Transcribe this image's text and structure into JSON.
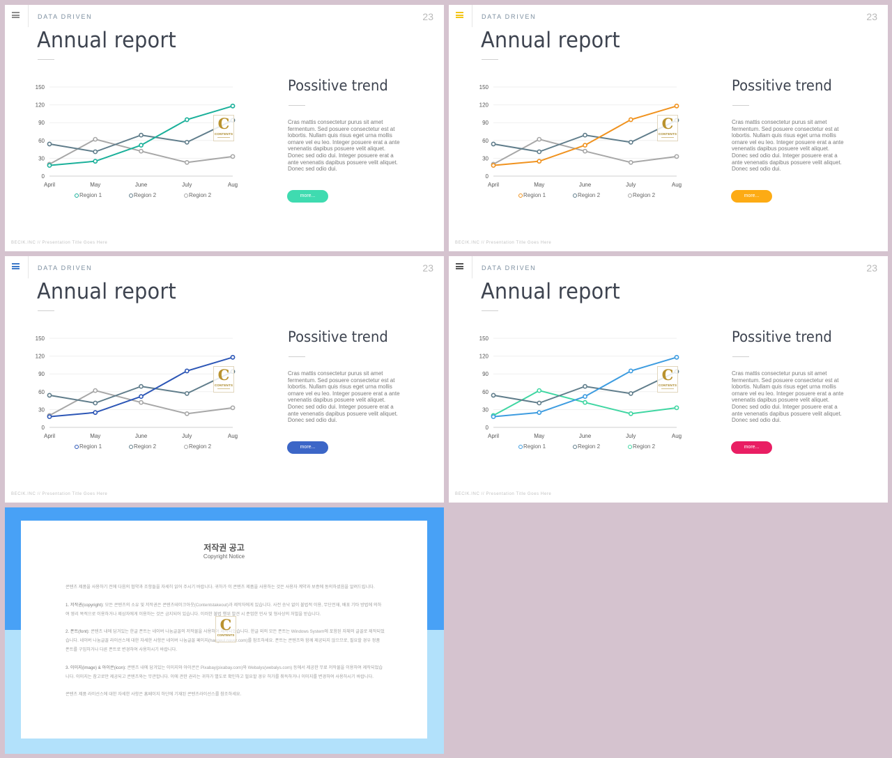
{
  "colors": {
    "background": "#d5c3cf",
    "line_gray": "#a7a7a7",
    "line_slate": "#607d8b",
    "copyright_band_top": "#48a1f6",
    "copyright_band_bottom": "#b2e1fb"
  },
  "slides": [
    {
      "section_label": "DATA DRIVEN",
      "page_number": "23",
      "title": "Annual report",
      "side_heading": "Possitive trend",
      "side_body": "Cras mattis consectetur purus sit amet fermentum. Sed posuere consectetur est at lobortis. Nullam quis risus eget urna mollis ornare vel eu leo. Integer posuere erat a ante venenatis dapibus posuere velit aliquet. Donec sed odio dui. Integer posuere erat a ante venenatis dapibus posuere velit aliquet. Donec sed odio dui.",
      "button_label": "more...",
      "footer": "BECIK.INC  //  Presentation  Title  Goes  Here",
      "menu_icon": "hamburger-icon",
      "accent_color": "#1ab09a",
      "button_color": "#3fdbb0",
      "menu_color": "#8c8c8c",
      "legend": [
        "Region 1",
        "Region 2",
        "Region 2"
      ]
    },
    {
      "section_label": "DATA DRIVEN",
      "page_number": "23",
      "title": "Annual report",
      "side_heading": "Possitive trend",
      "side_body": "Cras mattis consectetur purus sit amet fermentum. Sed posuere consectetur est at lobortis. Nullam quis risus eget urna mollis ornare vel eu leo. Integer posuere erat a ante venenatis dapibus posuere velit aliquet. Donec sed odio dui. Integer posuere erat a ante venenatis dapibus posuere velit aliquet. Donec sed odio dui.",
      "button_label": "more...",
      "footer": "BECIK.INC  //  Presentation  Title  Goes  Here",
      "menu_icon": "hamburger-icon",
      "accent_color": "#f0921e",
      "button_color": "#fdab14",
      "menu_color": "#f3c516",
      "legend": [
        "Region 1",
        "Region 2",
        "Region 2"
      ]
    },
    {
      "section_label": "DATA DRIVEN",
      "page_number": "23",
      "title": "Annual report",
      "side_heading": "Possitive trend",
      "side_body": "Cras mattis consectetur purus sit amet fermentum. Sed posuere consectetur est at lobortis. Nullam quis risus eget urna mollis ornare vel eu leo. Integer posuere erat a ante venenatis dapibus posuere velit aliquet. Donec sed odio dui. Integer posuere erat a ante venenatis dapibus posuere velit aliquet. Donec sed odio dui.",
      "button_label": "more...",
      "footer": "BECIK.INC  //  Presentation  Title  Goes  Here",
      "menu_icon": "hamburger-icon",
      "accent_color": "#2c56b6",
      "button_color": "#3c66c7",
      "menu_color": "#3c78c8",
      "legend": [
        "Region 1",
        "Region 2",
        "Region 2"
      ]
    },
    {
      "section_label": "DATA DRIVEN",
      "page_number": "23",
      "title": "Annual report",
      "side_heading": "Possitive trend",
      "side_body": "Cras mattis consectetur purus sit amet fermentum. Sed posuere consectetur est at lobortis. Nullam quis risus eget urna mollis ornare vel eu leo. Integer posuere erat a ante venenatis dapibus posuere velit aliquet. Donec sed odio dui. Integer posuere erat a ante venenatis dapibus posuere velit aliquet. Donec sed odio dui.",
      "button_label": "more...",
      "footer": "BECIK.INC  //  Presentation  Title  Goes  Here",
      "menu_icon": "hamburger-icon",
      "accent_color": "#3d9ce0",
      "button_color": "#e91e63",
      "menu_color": "#555555",
      "legend": [
        "Region 1",
        "Region 2",
        "Region 2"
      ]
    }
  ],
  "chart_data": [
    {
      "type": "line",
      "categories": [
        "April",
        "May",
        "June",
        "July",
        "Aug"
      ],
      "ylim": [
        0,
        150
      ],
      "yticks": [
        0,
        30,
        60,
        90,
        120,
        150
      ],
      "grid": "horizontal",
      "legend_placement": "bottom",
      "series": [
        {
          "name": "Region 1",
          "values": [
            18,
            25,
            52,
            95,
            118
          ],
          "color": "#1ab09a"
        },
        {
          "name": "Region 2",
          "values": [
            54,
            41,
            69,
            57,
            94
          ],
          "color": "#607d8b"
        },
        {
          "name": "Region 2",
          "values": [
            20,
            62,
            42,
            23,
            33
          ],
          "color": "#a7a7a7"
        }
      ]
    },
    {
      "type": "line",
      "categories": [
        "April",
        "May",
        "June",
        "July",
        "Aug"
      ],
      "ylim": [
        0,
        150
      ],
      "yticks": [
        0,
        30,
        60,
        90,
        120,
        150
      ],
      "grid": "horizontal",
      "legend_placement": "bottom",
      "series": [
        {
          "name": "Region 1",
          "values": [
            18,
            25,
            52,
            95,
            118
          ],
          "color": "#f0921e"
        },
        {
          "name": "Region 2",
          "values": [
            54,
            41,
            69,
            57,
            94
          ],
          "color": "#607d8b"
        },
        {
          "name": "Region 2",
          "values": [
            20,
            62,
            42,
            23,
            33
          ],
          "color": "#a7a7a7"
        }
      ]
    },
    {
      "type": "line",
      "categories": [
        "April",
        "May",
        "June",
        "July",
        "Aug"
      ],
      "ylim": [
        0,
        150
      ],
      "yticks": [
        0,
        30,
        60,
        90,
        120,
        150
      ],
      "grid": "horizontal",
      "legend_placement": "bottom",
      "series": [
        {
          "name": "Region 1",
          "values": [
            18,
            25,
            52,
            95,
            118
          ],
          "color": "#2c56b6"
        },
        {
          "name": "Region 2",
          "values": [
            54,
            41,
            69,
            57,
            94
          ],
          "color": "#607d8b"
        },
        {
          "name": "Region 2",
          "values": [
            20,
            62,
            42,
            23,
            33
          ],
          "color": "#a7a7a7"
        }
      ]
    },
    {
      "type": "line",
      "categories": [
        "April",
        "May",
        "June",
        "July",
        "Aug"
      ],
      "ylim": [
        0,
        150
      ],
      "yticks": [
        0,
        30,
        60,
        90,
        120,
        150
      ],
      "grid": "horizontal",
      "legend_placement": "bottom",
      "series": [
        {
          "name": "Region 1",
          "values": [
            18,
            25,
            52,
            95,
            118
          ],
          "color": "#3d9ce0"
        },
        {
          "name": "Region 2",
          "values": [
            54,
            41,
            69,
            57,
            94
          ],
          "color": "#607d8b"
        },
        {
          "name": "Region 2",
          "values": [
            20,
            62,
            42,
            23,
            33
          ],
          "color": "#3fd6a2"
        }
      ]
    }
  ],
  "logo": {
    "letter": "C",
    "text": "CONTENTS"
  },
  "copyright": {
    "title": "저작권 공고",
    "subtitle": "Copyright Notice",
    "intro": "콘텐츠 제품을 사용하기 전에 다음의 협약과 조항들을 자세히 읽어 주시기 바랍니다. 귀하가 이 콘텐츠 제품을 사용하는 것은 사용자 계약과 보증에 동의하셨음을 알려드립니다.",
    "p1_label": "1. 저작권(copyright):",
    "p1": " 모든 콘텐츠의 소유 및 저작권은 콘텐츠테이크아웃(Contentstakeout)과 제작자에게 있습니다. 사전 승낙 없이 불법적 이용, 무단전재, 배포 기타 방법에 의하여 영리 목적으로 이용하거나 제삼자에게 이용하는 것은 금지되어 있습니다. 이러한 불법 행위 발견 시 준엄한 민사 및 형사상의 처벌을 받습니다.",
    "p2_label": "2. 폰트(font):",
    "p2": " 콘텐츠 내에 담겨있는 한글 폰트는 네이버 나눔글꼴의 저작물을 사용하여 제작되었습니다. 한글 외의 모든 폰트는 Windows System에 포함된 자체의 글꼴로 제작되었습니다. 네이버 나눔글꼴 라이선스에 대한 자세한 사항은 네이버 나눔글꼴 페이지(hangeul.naver.com)를 참조하세요. 폰트는 콘텐츠와 함께 제공되지 않으므로, 필요할 경우 정품 폰트를 구입하거나 다른 폰트로 변경하여 사용하시기 바랍니다.",
    "p3_label": "3. 이미지(image) & 아이콘(icon):",
    "p3": " 콘텐츠 내에 담겨있는 이미지와 아이콘은 Pixabay(pixabay.com)와 Webalys(webalys.com) 등에서 제공한 무료 저작물을 이용하여 제작되었습니다. 이미지는 참고로만 제공되고 콘텐츠와는 무관합니다. 이에 관한 권리는 귀하가 별도로 확인하고 필요할 경우 허가를 취득하거나 이미지를 변경하여 사용하시기 바랍니다.",
    "closing": "콘텐츠 제품 라이선스에 대한 자세한 사항은 홈페이지 하단에 기재된 콘텐츠라이선스를 참조하세요."
  }
}
